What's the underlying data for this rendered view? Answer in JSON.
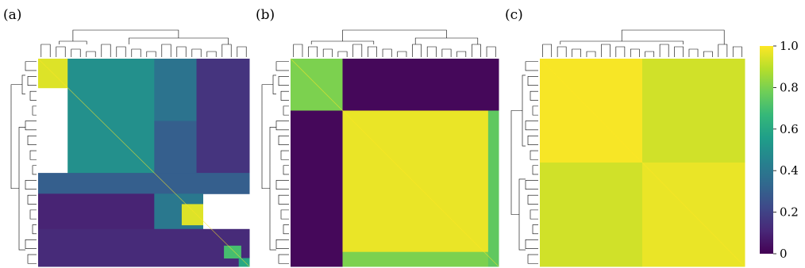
{
  "chart_data": [
    {
      "type": "heatmap",
      "panel_label": "(a)",
      "row_dendrogram": true,
      "column_dendrogram": true,
      "blocks": [
        {
          "rows": [
            0.0,
            0.14
          ],
          "cols": [
            0.0,
            0.14
          ],
          "value": 0.95
        },
        {
          "rows": [
            0.0,
            0.55
          ],
          "cols": [
            0.14,
            0.55
          ],
          "value": 0.5
        },
        {
          "rows": [
            0.0,
            0.3
          ],
          "cols": [
            0.55,
            0.75
          ],
          "value": 0.38
        },
        {
          "rows": [
            0.3,
            0.55
          ],
          "cols": [
            0.55,
            0.75
          ],
          "value": 0.3
        },
        {
          "rows": [
            0.0,
            0.55
          ],
          "cols": [
            0.75,
            1.0
          ],
          "value": 0.15
        },
        {
          "rows": [
            0.55,
            0.65
          ],
          "cols": [
            0.0,
            1.0
          ],
          "value": 0.3
        },
        {
          "rows": [
            0.65,
            0.82
          ],
          "cols": [
            0.0,
            0.55
          ],
          "value": 0.1
        },
        {
          "rows": [
            0.65,
            0.82
          ],
          "cols": [
            0.55,
            0.78
          ],
          "value": 0.4
        },
        {
          "rows": [
            0.7,
            0.8
          ],
          "cols": [
            0.68,
            0.78
          ],
          "value": 0.95
        },
        {
          "rows": [
            0.82,
            1.0
          ],
          "cols": [
            0.0,
            1.0
          ],
          "value": 0.12
        },
        {
          "rows": [
            0.9,
            0.96
          ],
          "cols": [
            0.88,
            0.96
          ],
          "value": 0.7
        },
        {
          "rows": [
            0.96,
            1.0
          ],
          "cols": [
            0.95,
            1.0
          ],
          "value": 0.6
        }
      ],
      "diagonal_value": 1.0
    },
    {
      "type": "heatmap",
      "panel_label": "(b)",
      "row_dendrogram": true,
      "column_dendrogram": true,
      "blocks": [
        {
          "rows": [
            0.0,
            0.25
          ],
          "cols": [
            0.0,
            0.25
          ],
          "value": 0.8
        },
        {
          "rows": [
            0.0,
            0.25
          ],
          "cols": [
            0.25,
            1.0
          ],
          "value": 0.02
        },
        {
          "rows": [
            0.25,
            1.0
          ],
          "cols": [
            0.0,
            0.25
          ],
          "value": 0.02
        },
        {
          "rows": [
            0.25,
            1.0
          ],
          "cols": [
            0.25,
            1.0
          ],
          "value": 0.97
        },
        {
          "rows": [
            0.93,
            1.0
          ],
          "cols": [
            0.25,
            1.0
          ],
          "value": 0.8
        },
        {
          "rows": [
            0.25,
            1.0
          ],
          "cols": [
            0.95,
            1.0
          ],
          "value": 0.75
        }
      ],
      "diagonal_value": 1.0
    },
    {
      "type": "heatmap",
      "panel_label": "(c)",
      "row_dendrogram": true,
      "column_dendrogram": true,
      "blocks": [
        {
          "rows": [
            0.0,
            0.5
          ],
          "cols": [
            0.0,
            0.5
          ],
          "value": 0.99
        },
        {
          "rows": [
            0.0,
            0.5
          ],
          "cols": [
            0.5,
            1.0
          ],
          "value": 0.93
        },
        {
          "rows": [
            0.5,
            1.0
          ],
          "cols": [
            0.0,
            0.5
          ],
          "value": 0.93
        },
        {
          "rows": [
            0.5,
            1.0
          ],
          "cols": [
            0.5,
            1.0
          ],
          "value": 0.97
        }
      ],
      "diagonal_value": 1.0
    }
  ],
  "colorbar": {
    "colormap": "viridis",
    "range": [
      0,
      1
    ],
    "ticks": [
      {
        "value": 1.0,
        "label": "1.0"
      },
      {
        "value": 0.8,
        "label": "0.8"
      },
      {
        "value": 0.6,
        "label": "0.6"
      },
      {
        "value": 0.4,
        "label": "0.4"
      },
      {
        "value": 0.2,
        "label": "0.2"
      },
      {
        "value": 0.0,
        "label": "0"
      }
    ]
  },
  "colors": {
    "viridis": [
      "#440154",
      "#482878",
      "#3e4989",
      "#31688e",
      "#26828e",
      "#1f9e89",
      "#35b779",
      "#6ece58",
      "#b5de2b",
      "#fde725"
    ]
  }
}
